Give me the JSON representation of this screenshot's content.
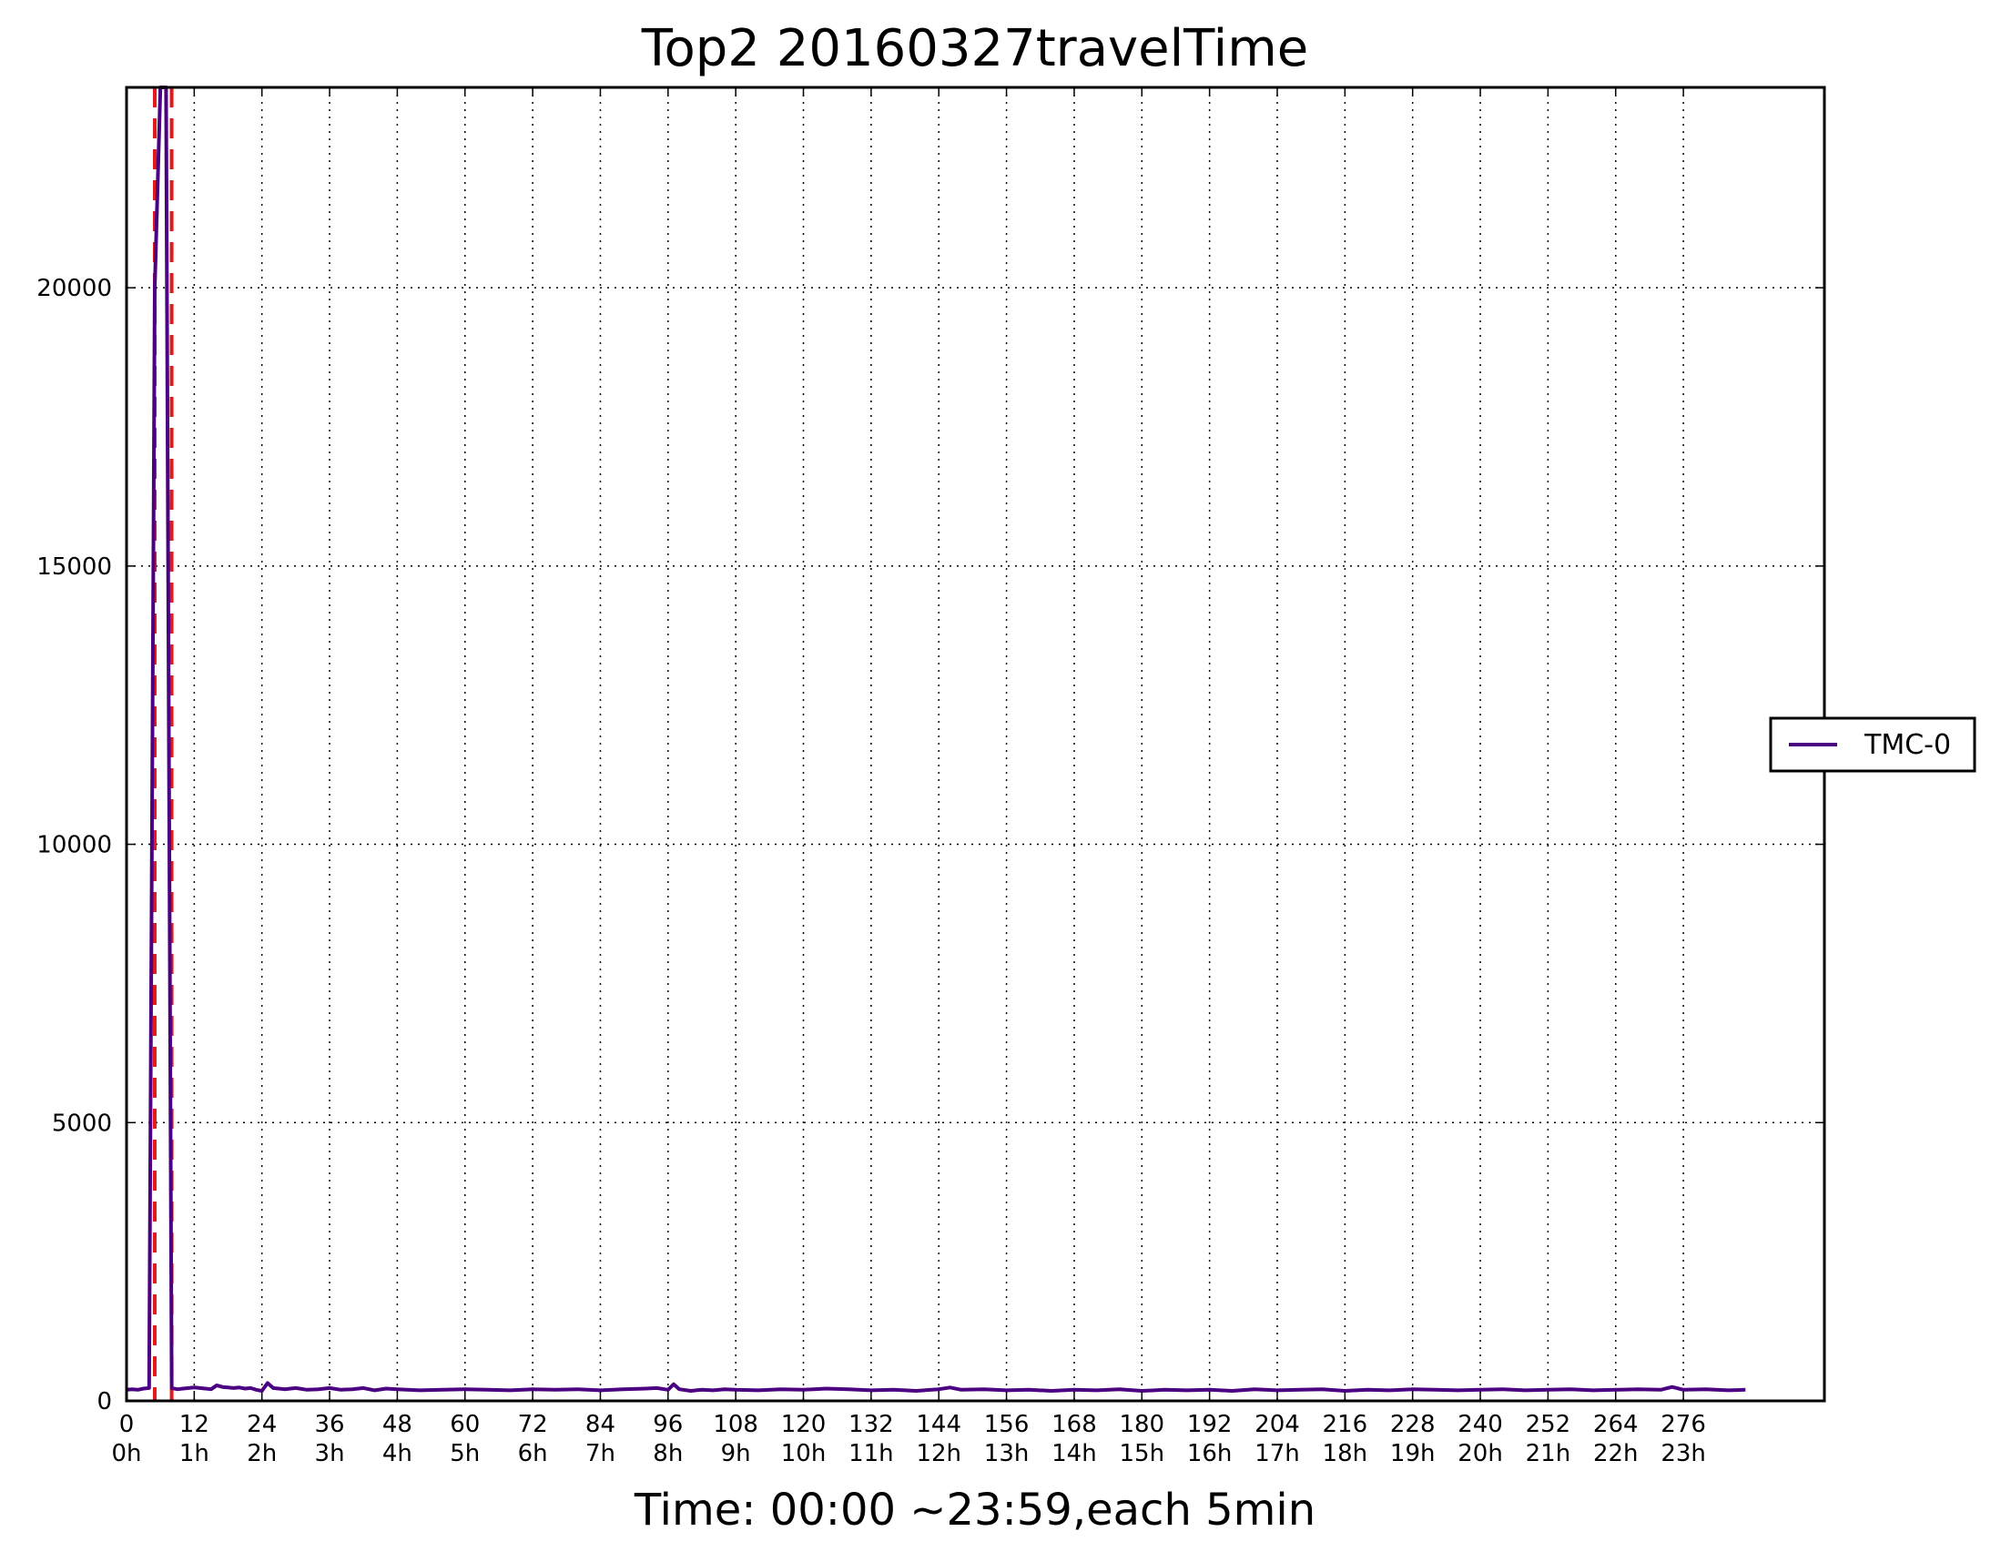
{
  "chart_data": {
    "type": "line",
    "title": "Top2 20160327travelTime",
    "xlabel": "Time: 00:00 ~23:59,each 5min",
    "ylabel": "",
    "xlim": [
      0,
      301
    ],
    "ylim": [
      0,
      23600
    ],
    "grid": true,
    "legend_position": "right",
    "x_ticks": [
      0,
      12,
      24,
      36,
      48,
      60,
      72,
      84,
      96,
      108,
      120,
      132,
      144,
      156,
      168,
      180,
      192,
      204,
      216,
      228,
      240,
      252,
      264,
      276
    ],
    "x_tick_labels_hour": [
      "0h",
      "1h",
      "2h",
      "3h",
      "4h",
      "5h",
      "6h",
      "7h",
      "8h",
      "9h",
      "10h",
      "11h",
      "12h",
      "13h",
      "14h",
      "15h",
      "16h",
      "17h",
      "18h",
      "19h",
      "20h",
      "21h",
      "22h",
      "23h"
    ],
    "y_ticks": [
      0,
      5000,
      10000,
      15000,
      20000
    ],
    "series": [
      {
        "name": "TMC-0",
        "color": "#4b0082",
        "x": [
          0,
          1,
          2,
          3,
          4,
          5,
          6,
          7,
          8,
          9,
          10,
          11,
          12,
          13,
          14,
          15,
          16,
          17,
          18,
          19,
          20,
          21,
          22,
          23,
          24,
          25,
          26,
          27,
          28,
          30,
          32,
          34,
          36,
          38,
          40,
          42,
          44,
          46,
          48,
          52,
          56,
          60,
          64,
          68,
          72,
          76,
          80,
          84,
          88,
          92,
          94,
          96,
          97,
          98,
          100,
          102,
          104,
          106,
          108,
          112,
          116,
          120,
          124,
          128,
          132,
          136,
          140,
          144,
          146,
          148,
          152,
          156,
          160,
          164,
          168,
          172,
          176,
          180,
          184,
          188,
          192,
          196,
          200,
          204,
          208,
          212,
          216,
          220,
          224,
          228,
          232,
          236,
          240,
          244,
          248,
          252,
          256,
          260,
          264,
          268,
          272,
          274,
          276,
          280,
          284,
          287
        ],
        "values": [
          200,
          210,
          200,
          220,
          230,
          20000,
          23600,
          23600,
          230,
          210,
          220,
          230,
          240,
          230,
          220,
          210,
          280,
          250,
          240,
          230,
          240,
          220,
          230,
          200,
          180,
          320,
          230,
          220,
          210,
          230,
          200,
          210,
          230,
          200,
          210,
          230,
          190,
          220,
          210,
          190,
          200,
          210,
          200,
          190,
          210,
          200,
          210,
          190,
          210,
          220,
          230,
          200,
          300,
          210,
          180,
          200,
          190,
          210,
          200,
          190,
          210,
          200,
          220,
          210,
          190,
          200,
          180,
          210,
          240,
          200,
          210,
          190,
          200,
          180,
          200,
          190,
          210,
          180,
          200,
          190,
          200,
          180,
          210,
          190,
          200,
          210,
          180,
          200,
          190,
          210,
          200,
          190,
          200,
          210,
          190,
          200,
          210,
          190,
          200,
          210,
          200,
          250,
          200,
          210,
          190,
          200
        ]
      }
    ],
    "threshold_lines": [
      {
        "style": "dashed",
        "color": "#e31a1c",
        "x": 5
      },
      {
        "style": "dashed",
        "color": "#e31a1c",
        "x": 8
      }
    ]
  }
}
